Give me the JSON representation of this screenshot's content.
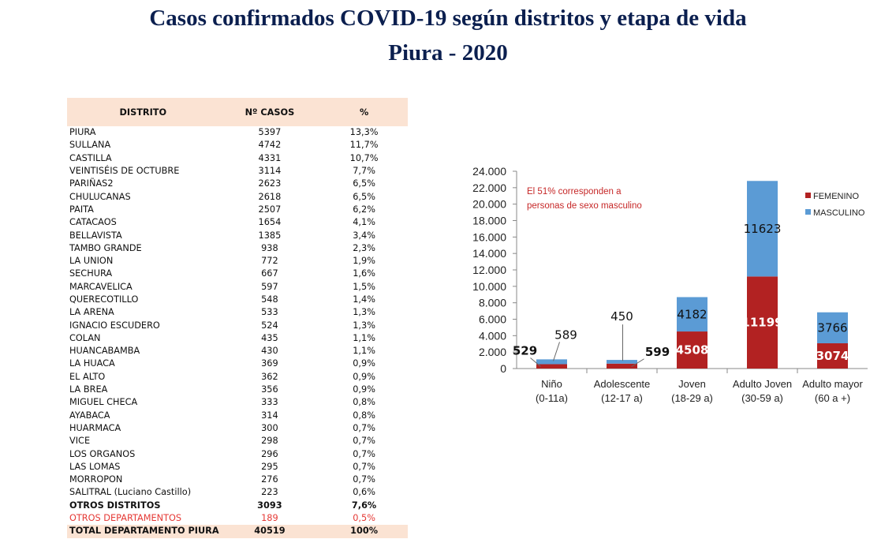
{
  "header": {
    "title": "Casos confirmados COVID-19 según distritos y etapa de vida",
    "subtitle": "Piura - 2020"
  },
  "table": {
    "headers": [
      "DISTRITO",
      "Nº CASOS",
      "%"
    ],
    "rows": [
      {
        "district": "PIURA",
        "cases": "5397",
        "pct": "13,3%"
      },
      {
        "district": "SULLANA",
        "cases": "4742",
        "pct": "11,7%"
      },
      {
        "district": "CASTILLA",
        "cases": "4331",
        "pct": "10,7%"
      },
      {
        "district": "VEINTISÉIS DE OCTUBRE",
        "cases": "3114",
        "pct": "7,7%"
      },
      {
        "district": "PARIÑAS2",
        "cases": "2623",
        "pct": "6,5%"
      },
      {
        "district": "CHULUCANAS",
        "cases": "2618",
        "pct": "6,5%"
      },
      {
        "district": "PAITA",
        "cases": "2507",
        "pct": "6,2%"
      },
      {
        "district": "CATACAOS",
        "cases": "1654",
        "pct": "4,1%"
      },
      {
        "district": "BELLAVISTA",
        "cases": "1385",
        "pct": "3,4%"
      },
      {
        "district": "TAMBO GRANDE",
        "cases": "938",
        "pct": "2,3%"
      },
      {
        "district": "LA UNION",
        "cases": "772",
        "pct": "1,9%"
      },
      {
        "district": "SECHURA",
        "cases": "667",
        "pct": "1,6%"
      },
      {
        "district": "MARCAVELICA",
        "cases": "597",
        "pct": "1,5%"
      },
      {
        "district": "QUERECOTILLO",
        "cases": "548",
        "pct": "1,4%"
      },
      {
        "district": "LA ARENA",
        "cases": "533",
        "pct": "1,3%"
      },
      {
        "district": "IGNACIO ESCUDERO",
        "cases": "524",
        "pct": "1,3%"
      },
      {
        "district": "COLAN",
        "cases": "435",
        "pct": "1,1%"
      },
      {
        "district": "HUANCABAMBA",
        "cases": "430",
        "pct": "1,1%"
      },
      {
        "district": "LA HUACA",
        "cases": "369",
        "pct": "0,9%"
      },
      {
        "district": "EL ALTO",
        "cases": "362",
        "pct": "0,9%"
      },
      {
        "district": "LA BREA",
        "cases": "356",
        "pct": "0,9%"
      },
      {
        "district": "MIGUEL CHECA",
        "cases": "333",
        "pct": "0,8%"
      },
      {
        "district": "AYABACA",
        "cases": "314",
        "pct": "0,8%"
      },
      {
        "district": "HUARMACA",
        "cases": "300",
        "pct": "0,7%"
      },
      {
        "district": "VICE",
        "cases": "298",
        "pct": "0,7%"
      },
      {
        "district": "LOS ORGANOS",
        "cases": "296",
        "pct": "0,7%"
      },
      {
        "district": "LAS LOMAS",
        "cases": "295",
        "pct": "0,7%"
      },
      {
        "district": "MORROPON",
        "cases": "276",
        "pct": "0,7%"
      },
      {
        "district": "SALITRAL (Luciano Castillo)",
        "cases": "223",
        "pct": "0,6%"
      },
      {
        "district": "OTROS DISTRITOS",
        "cases": "3093",
        "pct": "7,6%",
        "style": "bold"
      },
      {
        "district": "OTROS DEPARTAMENTOS",
        "cases": "189",
        "pct": "0,5%",
        "style": "red"
      }
    ],
    "total": {
      "district": "TOTAL DEPARTAMENTO PIURA",
      "cases": "40519",
      "pct": "100%"
    }
  },
  "chart_data": {
    "type": "bar",
    "stacked": true,
    "categories": [
      [
        "Niño",
        "(0-11a)"
      ],
      [
        "Adolescente",
        "(12-17 a)"
      ],
      [
        "Joven",
        "(18-29 a)"
      ],
      [
        "Adulto Joven",
        "(30-59 a)"
      ],
      [
        "Adulto mayor",
        "(60 a +)"
      ]
    ],
    "series": [
      {
        "name": "FEMENINO",
        "color": "#b22222",
        "values": [
          529,
          599,
          4508,
          11199,
          3074
        ]
      },
      {
        "name": "MASCULINO",
        "color": "#5b9bd5",
        "values": [
          589,
          450,
          4182,
          11623,
          3766
        ]
      }
    ],
    "ylim": [
      0,
      24000
    ],
    "yticks": [
      "0",
      "2.000",
      "4.000",
      "6.000",
      "8.000",
      "10.000",
      "12.000",
      "14.000",
      "16.000",
      "18.000",
      "20.000",
      "22.000",
      "24.000"
    ],
    "annotation": [
      "El 51%  corresponden  a",
      "personas de sexo masculino"
    ],
    "legend_position": "top-right",
    "grid": false
  }
}
